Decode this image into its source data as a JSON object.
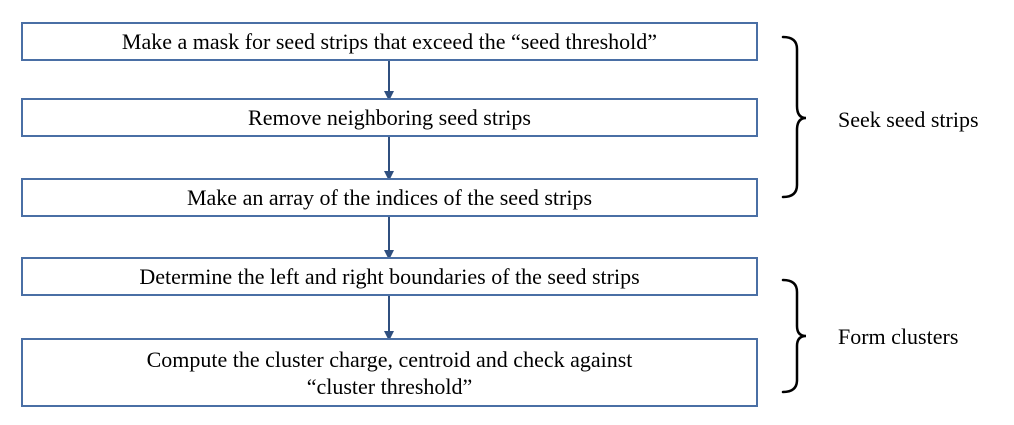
{
  "steps": [
    {
      "lines": [
        "Make a mask for seed strips that exceed the “seed threshold”"
      ]
    },
    {
      "lines": [
        "Remove neighboring seed strips"
      ]
    },
    {
      "lines": [
        "Make an array of the indices of the seed strips"
      ]
    },
    {
      "lines": [
        "Determine the left and right boundaries of the seed strips"
      ]
    },
    {
      "lines": [
        "Compute the cluster charge, centroid and check against",
        "“cluster threshold”"
      ]
    }
  ],
  "groups": [
    {
      "label": "Seek seed strips"
    },
    {
      "label": "Form clusters"
    }
  ],
  "colors": {
    "box_border": "#4a6fa5",
    "arrow": "#2f4f7f",
    "bracket": "#000000"
  }
}
